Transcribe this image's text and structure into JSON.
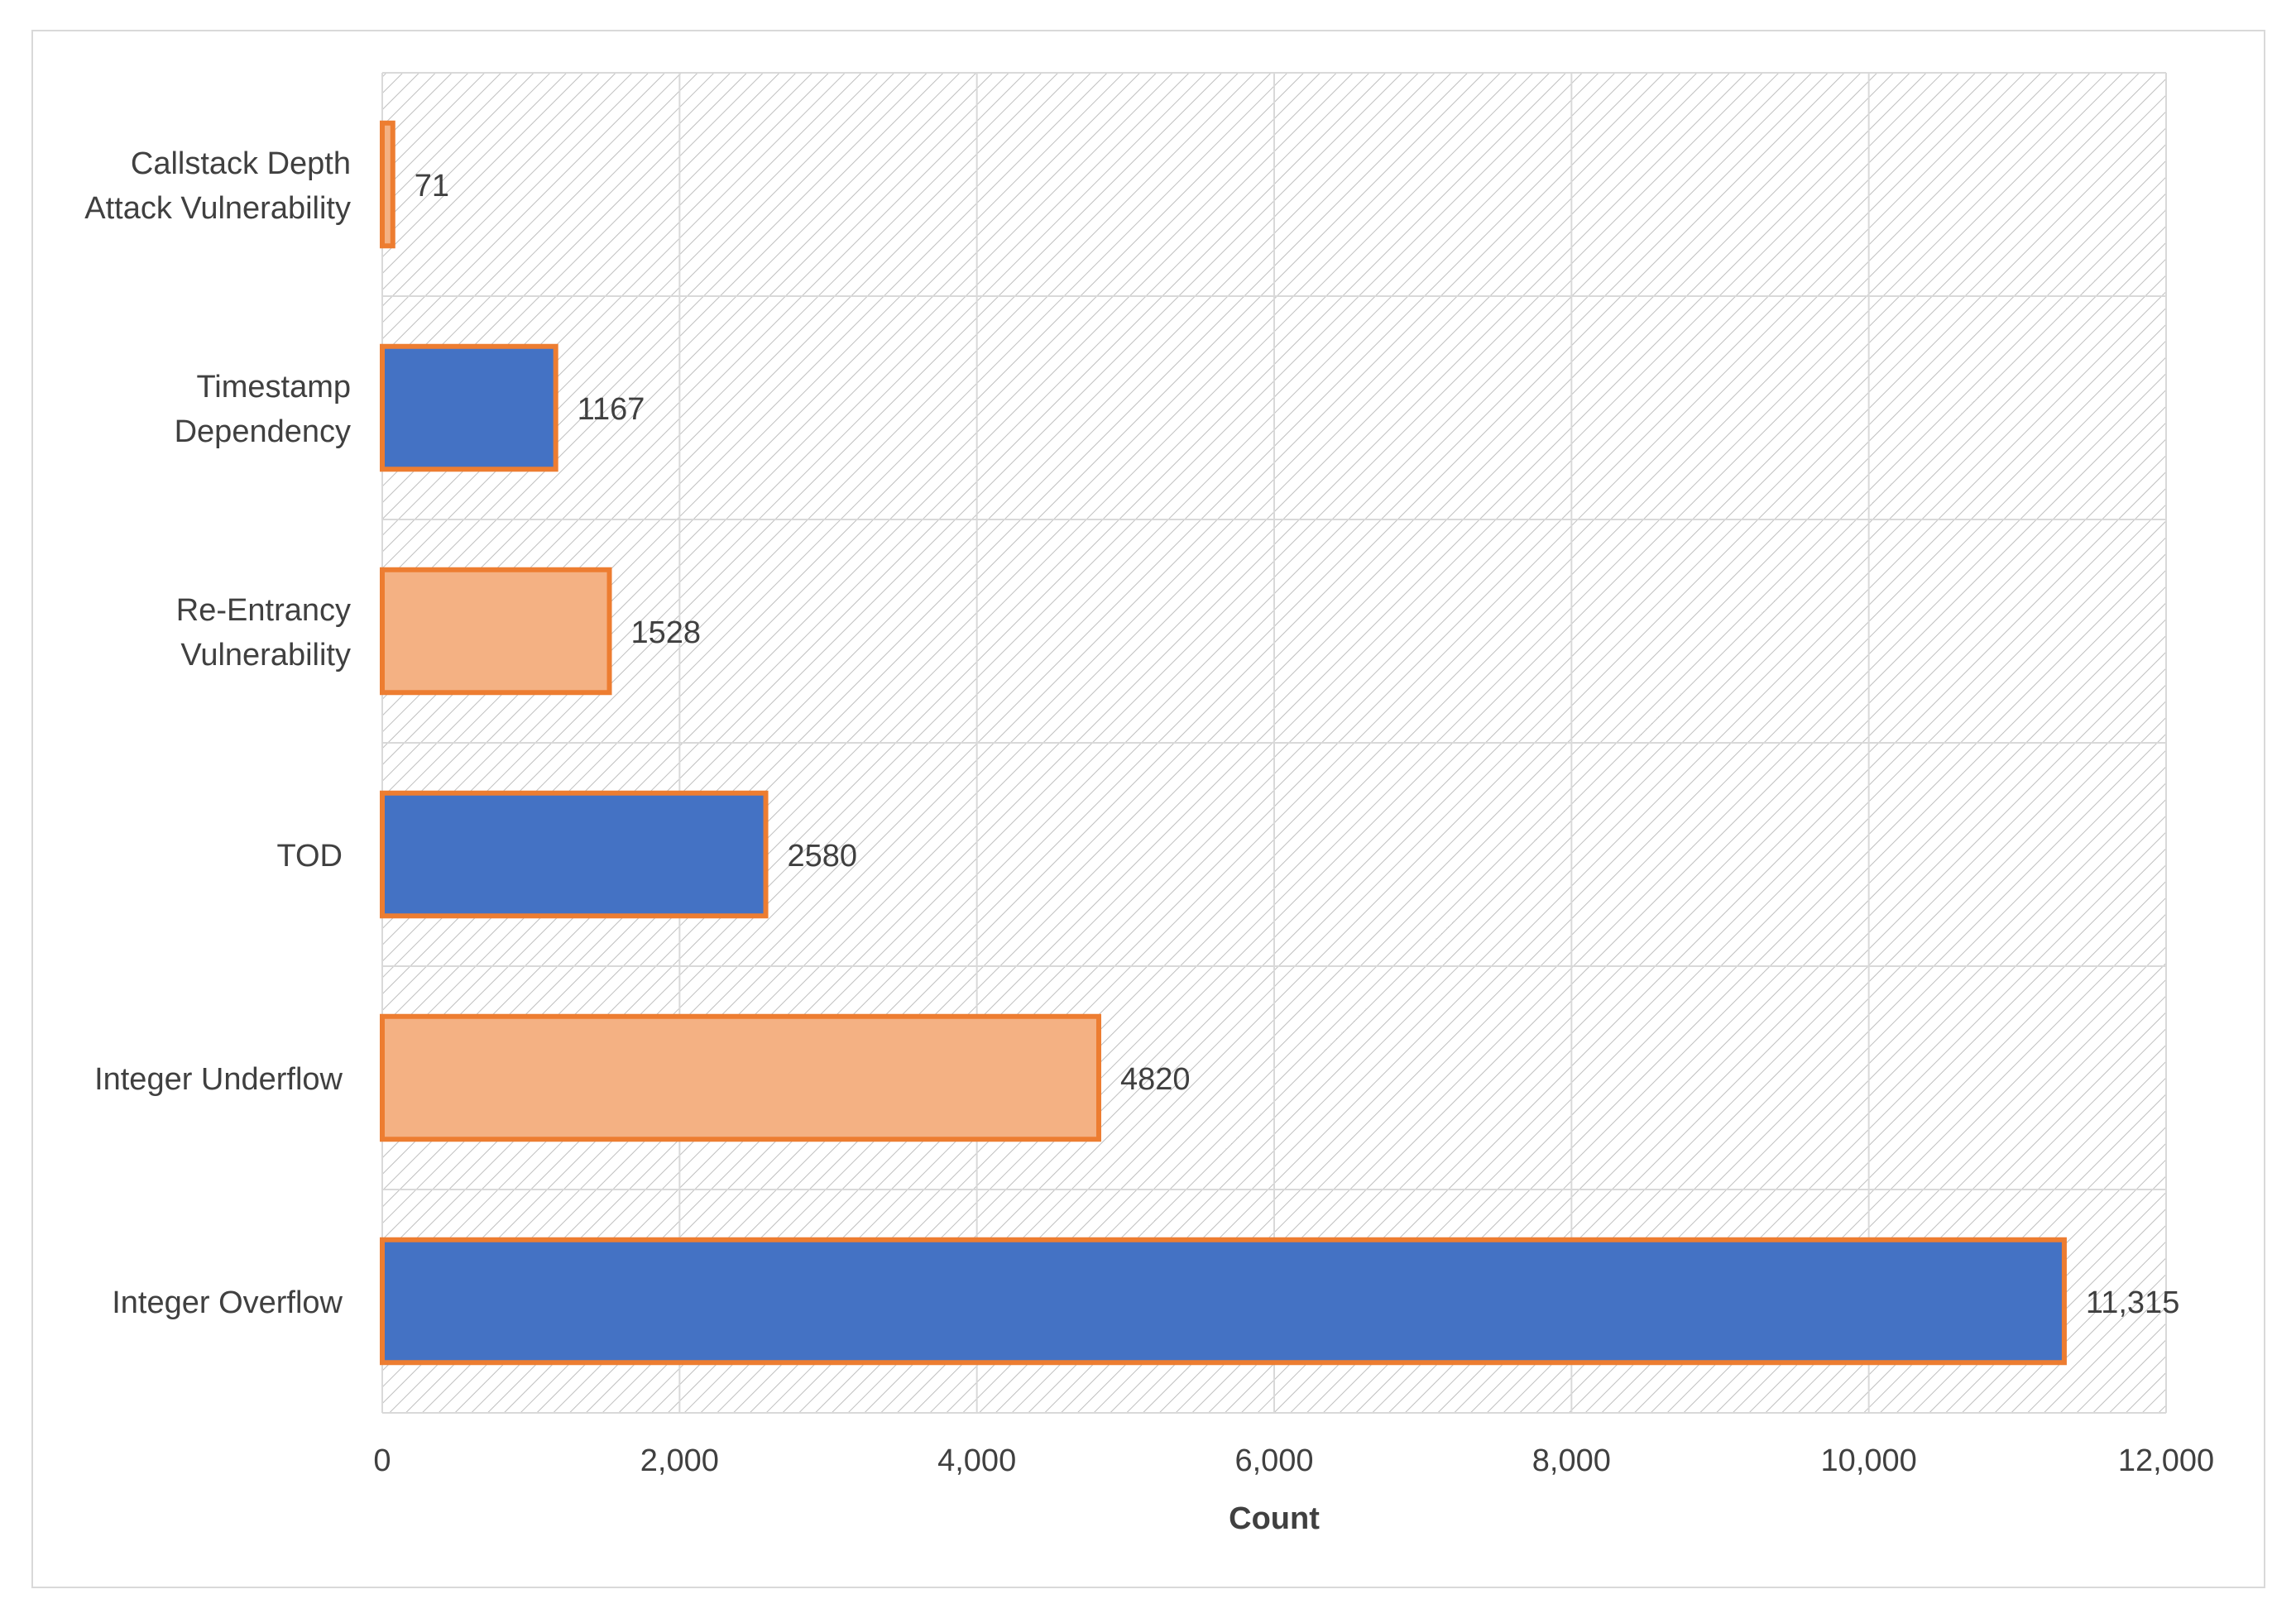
{
  "chart_data": {
    "type": "bar",
    "orientation": "horizontal",
    "title": "",
    "xlabel": "Count",
    "ylabel": "",
    "xlim": [
      0,
      12000
    ],
    "x_ticks": [
      0,
      2000,
      4000,
      6000,
      8000,
      10000,
      12000
    ],
    "x_tick_labels": [
      "0",
      "2,000",
      "4,000",
      "6,000",
      "8,000",
      "10,000",
      "12,000"
    ],
    "grid": true,
    "categories": [
      [
        "Callstack Depth",
        "Attack Vulnerability"
      ],
      [
        "Timestamp",
        "Dependency"
      ],
      [
        "Re-Entrancy",
        "Vulnerability"
      ],
      [
        "TOD"
      ],
      [
        "Integer Underflow"
      ],
      [
        "Integer Overflow"
      ]
    ],
    "values": [
      71,
      1167,
      1528,
      2580,
      4820,
      11315
    ],
    "data_labels": [
      "71",
      "1167",
      "1528",
      "2580",
      "4820",
      "11,315"
    ],
    "bar_fills": [
      "#f4b183",
      "#4472c4",
      "#f4b183",
      "#4472c4",
      "#f4b183",
      "#4472c4"
    ],
    "bar_outline": "#ed7d31",
    "gridline_color": "#d9d9d9",
    "hatch_color": "#bfbfbf"
  }
}
